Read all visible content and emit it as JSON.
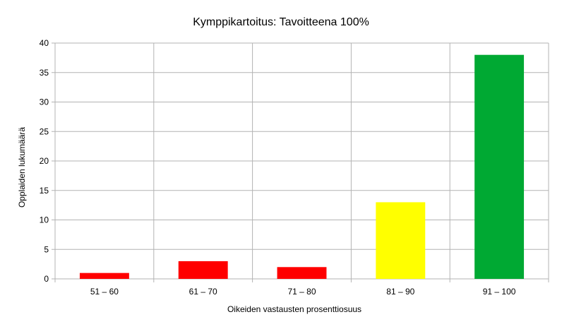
{
  "chart_data": {
    "type": "bar",
    "title": "Kymppikartoitus: Tavoitteena 100%",
    "xlabel": "Oikeiden vastausten prosenttiosuus",
    "ylabel": "Opplaiden lukumäärä",
    "categories": [
      "51 – 60",
      "61 – 70",
      "71 – 80",
      "81 – 90",
      "91 – 100"
    ],
    "values": [
      1,
      3,
      2,
      13,
      38
    ],
    "colors": [
      "#ff0000",
      "#ff0000",
      "#ff0000",
      "#ffff00",
      "#00a933"
    ],
    "ylim": [
      0,
      40
    ],
    "yticks": [
      0,
      5,
      10,
      15,
      20,
      25,
      30,
      35,
      40
    ],
    "grid": true,
    "legend": "none"
  }
}
